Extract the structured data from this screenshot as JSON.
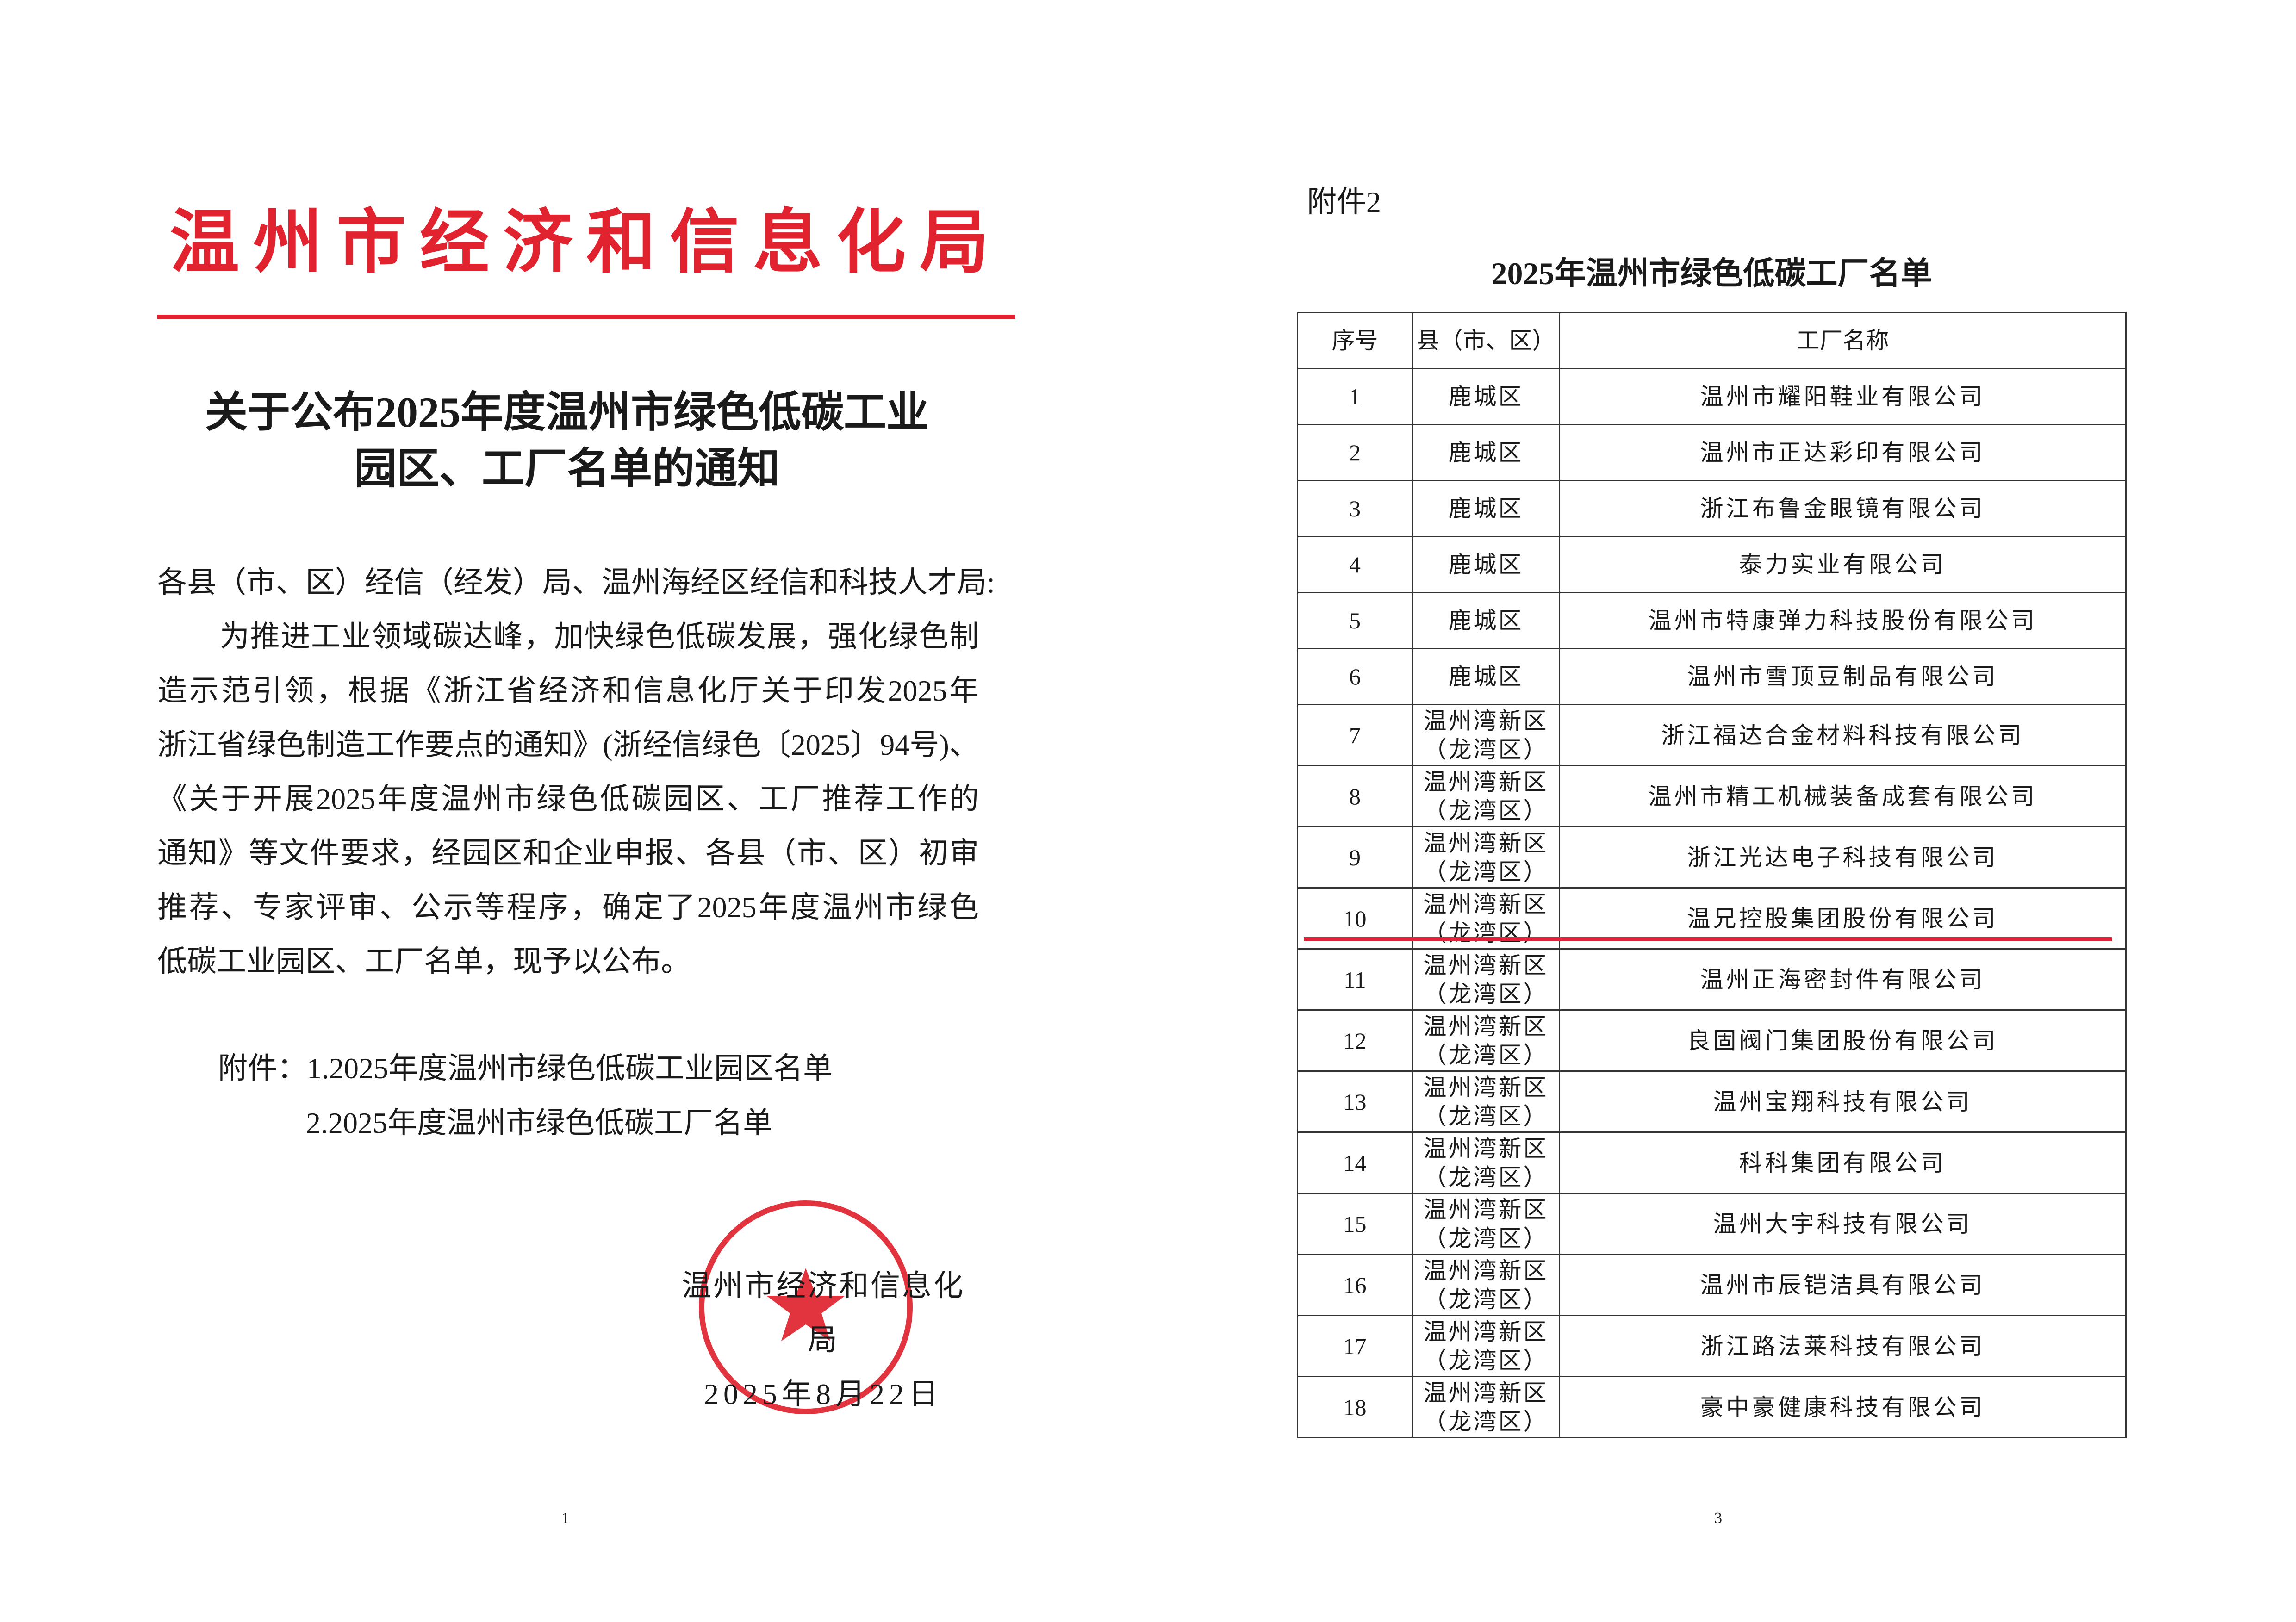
{
  "left_page": {
    "org_title": "温州市经济和信息化局",
    "doc_title_lines": [
      "关于公布2025年度温州市绿色低碳工业",
      "园区、工厂名单的通知"
    ],
    "body_lines": [
      "各县（市、区）经信（经发）局、温州海经区经信和科技人才局:",
      "为推进工业领域碳达峰，加快绿色低碳发展，强化绿色制",
      "造示范引领，根据《浙江省经济和信息化厅关于印发2025年",
      "浙江省绿色制造工作要点的通知》(浙经信绿色〔2025〕94号)、",
      "《关于开展2025年度温州市绿色低碳园区、工厂推荐工作的",
      "通知》等文件要求，经园区和企业申报、各县（市、区）初审",
      "推荐、专家评审、公示等程序，确定了2025年度温州市绿色",
      "低碳工业园区、工厂名单，现予以公布。"
    ],
    "attachments": [
      "附件：1.2025年度温州市绿色低碳工业园区名单",
      "2.2025年度温州市绿色低碳工厂名单"
    ],
    "signature": "温州市经济和信息化局",
    "date": "2025年8月22日",
    "seal_text": "温州市经济和信息化局",
    "seal_color": "#e0232e",
    "page_number": "1"
  },
  "right_page": {
    "annex_label": "附件2",
    "table_title": "2025年温州市绿色低碳工厂名单",
    "columns": [
      "序号",
      "县（市、区）",
      "工厂名称"
    ],
    "rows": [
      {
        "no": "1",
        "district": [
          "鹿城区"
        ],
        "name": "温州市耀阳鞋业有限公司"
      },
      {
        "no": "2",
        "district": [
          "鹿城区"
        ],
        "name": "温州市正达彩印有限公司"
      },
      {
        "no": "3",
        "district": [
          "鹿城区"
        ],
        "name": "浙江布鲁金眼镜有限公司"
      },
      {
        "no": "4",
        "district": [
          "鹿城区"
        ],
        "name": "泰力实业有限公司"
      },
      {
        "no": "5",
        "district": [
          "鹿城区"
        ],
        "name": "温州市特康弹力科技股份有限公司"
      },
      {
        "no": "6",
        "district": [
          "鹿城区"
        ],
        "name": "温州市雪顶豆制品有限公司"
      },
      {
        "no": "7",
        "district": [
          "温州湾新区",
          "（龙湾区）"
        ],
        "name": "浙江福达合金材料科技有限公司"
      },
      {
        "no": "8",
        "district": [
          "温州湾新区",
          "（龙湾区）"
        ],
        "name": "温州市精工机械装备成套有限公司"
      },
      {
        "no": "9",
        "district": [
          "温州湾新区",
          "（龙湾区）"
        ],
        "name": "浙江光达电子科技有限公司"
      },
      {
        "no": "10",
        "district": [
          "温州湾新区",
          "（龙湾区）"
        ],
        "name": "温兄控股集团股份有限公司",
        "highlighted": true
      },
      {
        "no": "11",
        "district": [
          "温州湾新区",
          "（龙湾区）"
        ],
        "name": "温州正海密封件有限公司"
      },
      {
        "no": "12",
        "district": [
          "温州湾新区",
          "（龙湾区）"
        ],
        "name": "良固阀门集团股份有限公司"
      },
      {
        "no": "13",
        "district": [
          "温州湾新区",
          "（龙湾区）"
        ],
        "name": "温州宝翔科技有限公司"
      },
      {
        "no": "14",
        "district": [
          "温州湾新区",
          "（龙湾区）"
        ],
        "name": "科科集团有限公司"
      },
      {
        "no": "15",
        "district": [
          "温州湾新区",
          "（龙湾区）"
        ],
        "name": "温州大宇科技有限公司"
      },
      {
        "no": "16",
        "district": [
          "温州湾新区",
          "（龙湾区）"
        ],
        "name": "温州市辰铠洁具有限公司"
      },
      {
        "no": "17",
        "district": [
          "温州湾新区",
          "（龙湾区）"
        ],
        "name": "浙江路法莱科技有限公司"
      },
      {
        "no": "18",
        "district": [
          "温州湾新区",
          "（龙湾区）"
        ],
        "name": "豪中豪健康科技有限公司"
      }
    ],
    "highlight_color": "#e0233a",
    "page_number": "3"
  }
}
